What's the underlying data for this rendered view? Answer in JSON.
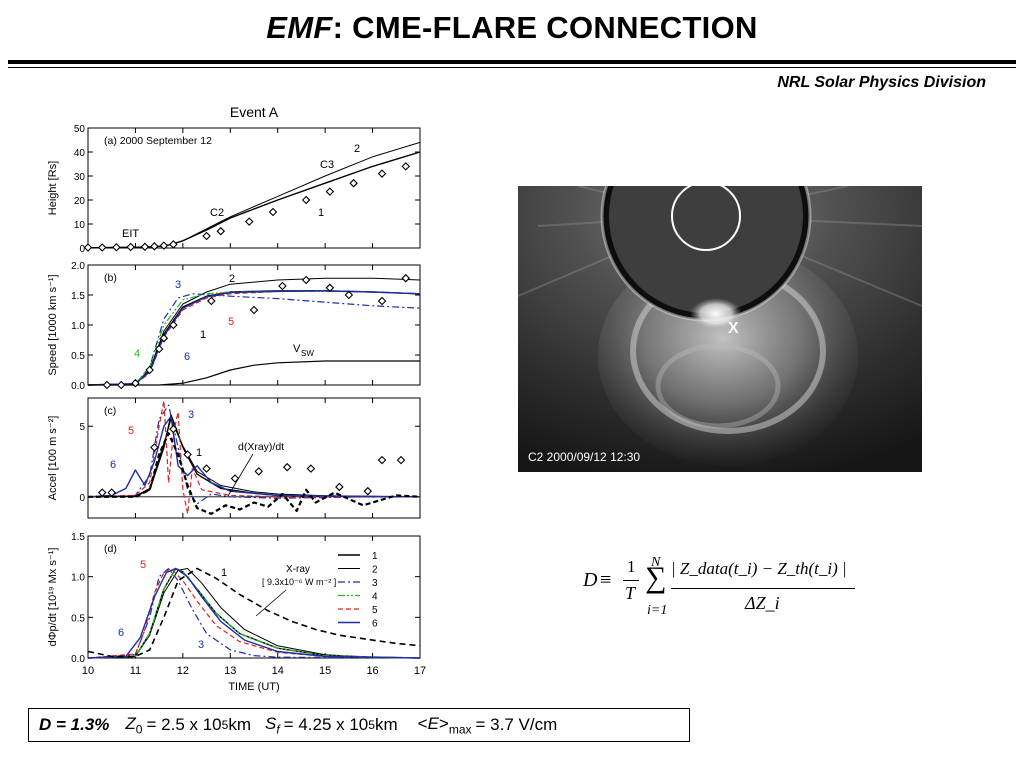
{
  "title": {
    "emf": "EMF",
    "rest": ": CME-FLARE CONNECTION"
  },
  "affiliation": "NRL Solar Physics Division",
  "figure": {
    "event_title": "Event A",
    "xlabel": "TIME (UT)",
    "xticks": [
      "10",
      "11",
      "12",
      "13",
      "14",
      "15",
      "16",
      "17"
    ]
  },
  "chart_data": [
    {
      "type": "line",
      "panel_label": "(a)  2000 September 12",
      "ylabel": "Height [Rs]",
      "xlim": [
        10,
        17
      ],
      "ylim": [
        0,
        50
      ],
      "yticks": [
        "0",
        "10",
        "20",
        "30",
        "40",
        "50"
      ],
      "annotations": [
        "EIT",
        "C2",
        "C3",
        "1",
        "2"
      ],
      "series": [
        {
          "name": "1",
          "x": [
            10,
            10.5,
            11,
            11.5,
            11.7,
            12,
            12.5,
            13,
            14,
            15,
            16,
            17
          ],
          "values": [
            0.1,
            0.2,
            0.3,
            0.7,
            1.2,
            3,
            7.5,
            12.5,
            20,
            27,
            34,
            40
          ]
        },
        {
          "name": "2",
          "x": [
            10,
            11,
            11.5,
            11.7,
            12,
            13,
            14,
            15,
            16,
            17
          ],
          "values": [
            0.1,
            0.3,
            0.7,
            1.2,
            3,
            13,
            21.5,
            30,
            38,
            44
          ]
        }
      ],
      "observations": {
        "x": [
          10,
          10.3,
          10.6,
          10.9,
          11.2,
          11.4,
          11.6,
          11.8,
          12.5,
          12.8,
          13.4,
          13.9,
          14.6,
          15.1,
          15.6,
          16.2,
          16.7
        ],
        "values": [
          0.2,
          0.2,
          0.3,
          0.4,
          0.5,
          0.7,
          1.0,
          1.5,
          5,
          7,
          11,
          15,
          20,
          23.5,
          27,
          31,
          34
        ]
      }
    },
    {
      "type": "line",
      "panel_label": "(b)",
      "ylabel": "Speed [1000 km s⁻¹]",
      "xlim": [
        10,
        17
      ],
      "ylim": [
        0,
        2
      ],
      "yticks": [
        "0.0",
        "0.5",
        "1.0",
        "1.5",
        "2.0"
      ],
      "annotations": [
        "2",
        "3",
        "5",
        "1",
        "4",
        "6",
        "V_SW"
      ],
      "series": [
        {
          "name": "1",
          "x": [
            10,
            11,
            11.3,
            11.6,
            12,
            12.5,
            13,
            14,
            15,
            16,
            17
          ],
          "values": [
            0,
            0.02,
            0.25,
            0.85,
            1.3,
            1.48,
            1.55,
            1.57,
            1.57,
            1.55,
            1.52
          ]
        },
        {
          "name": "2",
          "x": [
            10,
            11,
            11.3,
            11.6,
            12,
            12.5,
            13,
            14,
            15,
            16,
            17
          ],
          "values": [
            0,
            0.02,
            0.25,
            0.9,
            1.35,
            1.55,
            1.68,
            1.75,
            1.78,
            1.78,
            1.75
          ]
        },
        {
          "name": "3",
          "x": [
            10,
            11,
            11.3,
            11.6,
            11.9,
            12.2,
            12.6,
            13,
            14,
            15,
            16,
            17
          ],
          "values": [
            0,
            0.02,
            0.3,
            1.1,
            1.45,
            1.52,
            1.5,
            1.48,
            1.44,
            1.38,
            1.32,
            1.28
          ]
        },
        {
          "name": "4",
          "x": [
            10,
            11,
            11.3,
            11.6,
            12,
            12.5,
            13,
            14,
            15,
            16,
            17
          ],
          "values": [
            0,
            0.02,
            0.3,
            1.0,
            1.42,
            1.52,
            1.55,
            1.56,
            1.56,
            1.55,
            1.52
          ]
        },
        {
          "name": "5",
          "x": [
            10,
            11,
            11.3,
            11.6,
            12,
            12.5,
            13,
            14,
            15,
            16,
            17
          ],
          "values": [
            0,
            0.02,
            0.2,
            0.8,
            1.25,
            1.45,
            1.52,
            1.56,
            1.57,
            1.55,
            1.52
          ]
        },
        {
          "name": "6",
          "x": [
            10,
            11,
            11.3,
            11.6,
            12,
            12.5,
            13,
            14,
            15,
            16,
            17
          ],
          "values": [
            0,
            0.02,
            0.22,
            0.82,
            1.28,
            1.47,
            1.54,
            1.56,
            1.57,
            1.55,
            1.52
          ]
        },
        {
          "name": "V_SW",
          "x": [
            10,
            11.5,
            12,
            12.5,
            13,
            13.5,
            14,
            15,
            16,
            17
          ],
          "values": [
            0,
            0,
            0.03,
            0.12,
            0.25,
            0.33,
            0.37,
            0.4,
            0.4,
            0.4
          ]
        }
      ],
      "observations": {
        "x": [
          10.4,
          10.7,
          11.0,
          11.3,
          11.5,
          11.6,
          11.8,
          12.6,
          13.5,
          14.1,
          14.6,
          15.1,
          15.5,
          16.2,
          16.7
        ],
        "values": [
          0.0,
          0.0,
          0.03,
          0.25,
          0.6,
          0.78,
          1.0,
          1.4,
          1.25,
          1.65,
          1.75,
          1.62,
          1.5,
          1.4,
          1.78
        ]
      }
    },
    {
      "type": "line",
      "panel_label": "(c)",
      "ylabel": "Accel [100 m s⁻²]",
      "xlim": [
        10,
        17
      ],
      "ylim": [
        -1.5,
        7
      ],
      "yticks": [
        "0",
        "5"
      ],
      "annotations": [
        "5",
        "3",
        "6",
        "1",
        "d(Xray)/dt"
      ],
      "series": [
        {
          "name": "1",
          "x": [
            10,
            11,
            11.3,
            11.6,
            11.75,
            12,
            12.3,
            12.8,
            13.5,
            14,
            15,
            16,
            17
          ],
          "values": [
            0,
            0.05,
            0.5,
            3.5,
            5.8,
            3.5,
            1.6,
            0.6,
            0.25,
            0.1,
            0.05,
            0,
            0
          ]
        },
        {
          "name": "2",
          "x": [
            10,
            11,
            11.3,
            11.6,
            11.75,
            12,
            12.3,
            12.8,
            13.5,
            14,
            15,
            16,
            17
          ],
          "values": [
            0,
            0.05,
            0.6,
            3.8,
            5.5,
            3.6,
            1.8,
            0.8,
            0.35,
            0.2,
            0.08,
            0.03,
            0
          ]
        },
        {
          "name": "3",
          "x": [
            10,
            11,
            11.3,
            11.5,
            11.7,
            11.9,
            12.1,
            12.3,
            12.6,
            13,
            14,
            15,
            16,
            17
          ],
          "values": [
            0,
            0.1,
            1.5,
            5.5,
            6.5,
            3.5,
            0.5,
            -0.5,
            0.2,
            0,
            -0.1,
            -0.05,
            0,
            0
          ]
        },
        {
          "name": "5",
          "x": [
            10,
            11,
            11.3,
            11.5,
            11.6,
            11.7,
            11.8,
            11.9,
            12.0,
            12.1,
            12.2,
            12.4,
            13,
            14,
            17
          ],
          "values": [
            0,
            0.1,
            1.0,
            5.0,
            6.8,
            1.0,
            4.5,
            6.0,
            0.5,
            -1.2,
            2.0,
            0.5,
            0.1,
            0,
            0
          ]
        },
        {
          "name": "6",
          "x": [
            10,
            10.5,
            10.8,
            11.0,
            11.2,
            11.4,
            11.6,
            11.75,
            11.9,
            12.1,
            12.3,
            12.6,
            13,
            14,
            17
          ],
          "values": [
            0,
            0.1,
            0.6,
            1.9,
            0.8,
            2.5,
            5.0,
            5.7,
            2.2,
            1.5,
            2.2,
            1.0,
            0.4,
            0.1,
            0
          ]
        },
        {
          "name": "d(Xray)/dt",
          "x": [
            10,
            10.5,
            11,
            11.3,
            11.5,
            11.7,
            11.9,
            12.1,
            12.3,
            12.6,
            12.9,
            13.2,
            13.5,
            13.8,
            14.1,
            14.4,
            14.6,
            14.8,
            15.2,
            15.8,
            16.5,
            17
          ],
          "values": [
            0,
            0,
            0,
            0.5,
            3.0,
            4.5,
            3.0,
            0.8,
            -0.8,
            -1.2,
            -0.6,
            -0.9,
            -0.4,
            -0.7,
            0.2,
            -1.0,
            0.5,
            -0.4,
            0.3,
            -0.6,
            0.1,
            0
          ]
        }
      ],
      "observations": {
        "x": [
          10.3,
          10.5,
          11.4,
          11.8,
          12.1,
          12.5,
          13.1,
          13.6,
          14.2,
          14.7,
          15.3,
          15.9,
          16.2,
          16.6
        ],
        "values": [
          0.3,
          0.3,
          3.5,
          4.8,
          3.0,
          2.0,
          1.3,
          1.8,
          2.1,
          2.0,
          0.7,
          0.4,
          2.6,
          2.6
        ]
      }
    },
    {
      "type": "line",
      "panel_label": "(d)",
      "ylabel": "dΦp/dt [10¹⁹ Mx s⁻¹]",
      "xlim": [
        10,
        17
      ],
      "ylim": [
        0,
        1.5
      ],
      "yticks": [
        "0.0",
        "0.5",
        "1.0",
        "1.5"
      ],
      "annotations": [
        "5",
        "1",
        "6",
        "3",
        "X-ray",
        "[ 9.3x10⁻⁶ W m⁻² ]"
      ],
      "legend_placement": "top-right",
      "legend": [
        "1",
        "2",
        "3",
        "4",
        "5",
        "6"
      ],
      "series": [
        {
          "name": "1",
          "x": [
            10,
            11,
            11.3,
            11.6,
            11.85,
            12.0,
            12.3,
            12.7,
            13.2,
            14,
            15,
            16,
            17
          ],
          "values": [
            0,
            0.02,
            0.3,
            0.85,
            1.1,
            1.06,
            0.85,
            0.55,
            0.3,
            0.12,
            0.03,
            0.01,
            0
          ]
        },
        {
          "name": "2",
          "x": [
            10,
            11,
            11.3,
            11.6,
            11.9,
            12.1,
            12.4,
            12.8,
            13.3,
            14,
            15,
            16,
            17
          ],
          "values": [
            0,
            0.02,
            0.28,
            0.8,
            1.08,
            1.1,
            0.92,
            0.62,
            0.35,
            0.15,
            0.04,
            0.01,
            0
          ]
        },
        {
          "name": "3",
          "x": [
            10,
            11,
            11.3,
            11.5,
            11.7,
            11.9,
            12.2,
            12.5,
            13,
            13.5,
            14,
            17
          ],
          "values": [
            0,
            0.04,
            0.5,
            1.0,
            1.1,
            0.95,
            0.6,
            0.3,
            0.1,
            0.03,
            0.01,
            0
          ]
        },
        {
          "name": "4",
          "x": [
            10,
            11,
            11.3,
            11.6,
            11.85,
            12.0,
            12.3,
            12.7,
            13.2,
            14,
            15,
            17
          ],
          "values": [
            0,
            0.02,
            0.3,
            0.85,
            1.1,
            1.06,
            0.85,
            0.55,
            0.3,
            0.12,
            0.03,
            0
          ]
        },
        {
          "name": "5",
          "x": [
            10,
            11,
            11.2,
            11.4,
            11.6,
            11.75,
            12,
            12.3,
            12.7,
            13.2,
            14,
            15,
            17
          ],
          "values": [
            0,
            0.05,
            0.35,
            0.8,
            1.05,
            1.1,
            0.95,
            0.7,
            0.4,
            0.2,
            0.07,
            0.02,
            0
          ]
        },
        {
          "name": "6",
          "x": [
            10,
            10.8,
            11.1,
            11.4,
            11.65,
            11.85,
            12.1,
            12.4,
            12.8,
            13.3,
            14,
            15,
            17
          ],
          "values": [
            0,
            0.02,
            0.25,
            0.75,
            1.05,
            1.1,
            1.0,
            0.75,
            0.45,
            0.22,
            0.08,
            0.02,
            0
          ]
        },
        {
          "name": "X-ray",
          "x": [
            10,
            10.5,
            11,
            11.3,
            11.6,
            11.9,
            12.3,
            12.7,
            13.2,
            13.8,
            14.3,
            14.8,
            15.3,
            16,
            16.5,
            17
          ],
          "values": [
            0.08,
            0.02,
            0.02,
            0.1,
            0.5,
            0.95,
            1.1,
            0.98,
            0.78,
            0.58,
            0.45,
            0.35,
            0.28,
            0.22,
            0.18,
            0.15
          ]
        }
      ]
    }
  ],
  "series_colors": {
    "1": "#000000",
    "2": "#000000",
    "3": "#1c2fa8",
    "4": "#22bb22",
    "5": "#e02020",
    "6": "#1c2fa8",
    "X-ray": "#000000",
    "V_SW": "#000000",
    "d(Xray)/dt": "#000000"
  },
  "image": {
    "caption": "C2  2000/09/12 12:30",
    "marker": "X"
  },
  "equation": {
    "lhs": "D",
    "rel": "≡",
    "num": "1",
    "den": "T",
    "sum_top": "N",
    "sum_bottom": "i=1",
    "frac_num": "| Z_data(t_i) − Z_th(t_i) |",
    "frac_den": "ΔZ_i"
  },
  "summary": {
    "d_label": "D = 1.3%",
    "z0_value": "= 2.5 x 10",
    "z0_exp": "5",
    "z0_unit": " km",
    "sf_value": "= 4.25 x 10",
    "sf_exp": "5",
    "sf_unit": " km",
    "emax_value": "= 3.7 V/cm"
  }
}
